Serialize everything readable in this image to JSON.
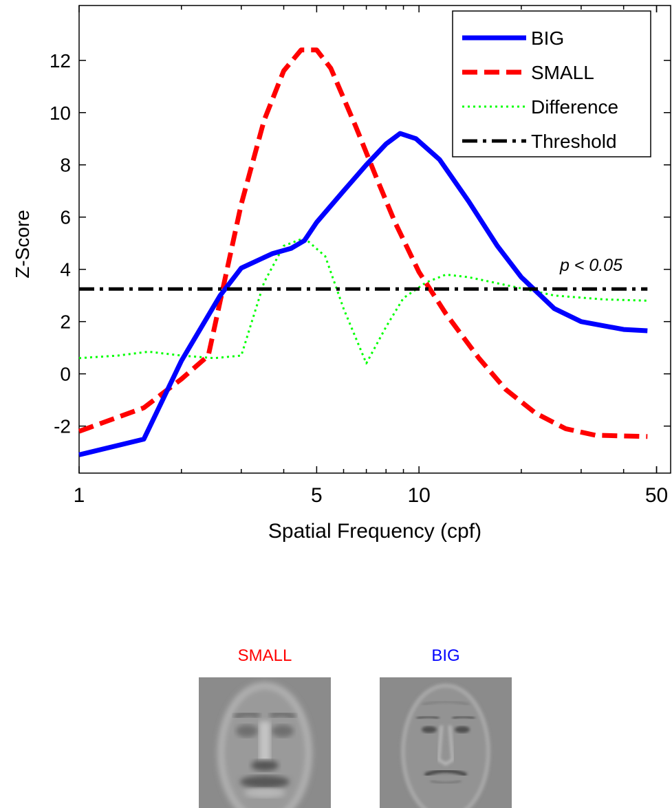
{
  "chart_data": {
    "type": "line",
    "xlabel": "Spatial Frequency (cpf)",
    "ylabel": "Z-Score",
    "x_scale": "log",
    "xlim": [
      1,
      55
    ],
    "ylim": [
      -3.8,
      14.1
    ],
    "x_ticks": [
      1,
      5,
      10,
      50
    ],
    "y_ticks": [
      -2,
      0,
      2,
      4,
      6,
      8,
      10,
      12
    ],
    "threshold_annotation": "p < 0.05",
    "legend_position": "top-right",
    "series": [
      {
        "name": "BIG",
        "color": "#0000ff",
        "style": "solid",
        "points": [
          [
            1,
            -3.1
          ],
          [
            1.55,
            -2.5
          ],
          [
            2.0,
            0.5
          ],
          [
            2.6,
            3.0
          ],
          [
            3.0,
            4.05
          ],
          [
            3.7,
            4.6
          ],
          [
            4.2,
            4.8
          ],
          [
            4.6,
            5.1
          ],
          [
            5.0,
            5.8
          ],
          [
            6.0,
            7.0
          ],
          [
            7.0,
            8.0
          ],
          [
            8.0,
            8.8
          ],
          [
            8.8,
            9.2
          ],
          [
            9.8,
            9.0
          ],
          [
            11.5,
            8.2
          ],
          [
            14,
            6.6
          ],
          [
            17,
            4.9
          ],
          [
            20,
            3.7
          ],
          [
            25,
            2.5
          ],
          [
            30,
            2.0
          ],
          [
            40,
            1.7
          ],
          [
            47,
            1.65
          ]
        ]
      },
      {
        "name": "SMALL",
        "color": "#ff0000",
        "style": "dashed",
        "points": [
          [
            1,
            -2.2
          ],
          [
            1.55,
            -1.3
          ],
          [
            2.0,
            -0.2
          ],
          [
            2.4,
            0.7
          ],
          [
            3.0,
            6.5
          ],
          [
            3.5,
            9.7
          ],
          [
            4.0,
            11.6
          ],
          [
            4.5,
            12.4
          ],
          [
            5.0,
            12.4
          ],
          [
            5.5,
            11.7
          ],
          [
            6.5,
            9.5
          ],
          [
            7.5,
            7.5
          ],
          [
            8.5,
            5.8
          ],
          [
            10,
            3.9
          ],
          [
            12,
            2.3
          ],
          [
            15,
            0.6
          ],
          [
            18,
            -0.6
          ],
          [
            22,
            -1.5
          ],
          [
            27,
            -2.1
          ],
          [
            33,
            -2.35
          ],
          [
            47,
            -2.4
          ]
        ]
      },
      {
        "name": "Difference",
        "color": "#00ff00",
        "style": "dotted",
        "points": [
          [
            1,
            0.6
          ],
          [
            1.3,
            0.7
          ],
          [
            1.6,
            0.85
          ],
          [
            2.0,
            0.7
          ],
          [
            2.5,
            0.6
          ],
          [
            3.0,
            0.7
          ],
          [
            3.5,
            3.5
          ],
          [
            4.0,
            4.9
          ],
          [
            4.6,
            5.2
          ],
          [
            5.3,
            4.5
          ],
          [
            6.0,
            2.5
          ],
          [
            7.0,
            0.4
          ],
          [
            8.0,
            1.8
          ],
          [
            9.0,
            2.9
          ],
          [
            10.5,
            3.5
          ],
          [
            12,
            3.8
          ],
          [
            14,
            3.7
          ],
          [
            18,
            3.4
          ],
          [
            25,
            3.0
          ],
          [
            35,
            2.85
          ],
          [
            47,
            2.8
          ]
        ]
      },
      {
        "name": "Threshold",
        "color": "#000000",
        "style": "dashdot",
        "points": [
          [
            1,
            3.25
          ],
          [
            47,
            3.25
          ]
        ]
      }
    ]
  },
  "faces": [
    {
      "label": "SMALL",
      "color": "#ff0000"
    },
    {
      "label": "BIG",
      "color": "#0000ff"
    }
  ]
}
